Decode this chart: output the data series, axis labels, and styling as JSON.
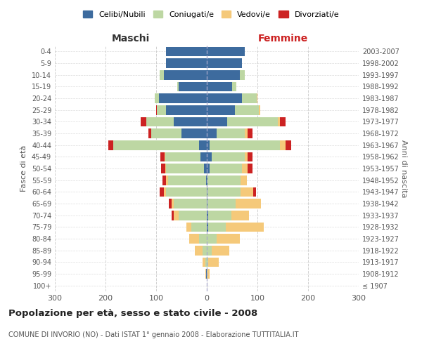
{
  "age_groups": [
    "100+",
    "95-99",
    "90-94",
    "85-89",
    "80-84",
    "75-79",
    "70-74",
    "65-69",
    "60-64",
    "55-59",
    "50-54",
    "45-49",
    "40-44",
    "35-39",
    "30-34",
    "25-29",
    "20-24",
    "15-19",
    "10-14",
    "5-9",
    "0-4"
  ],
  "birth_years": [
    "≤ 1907",
    "1908-1912",
    "1913-1917",
    "1918-1922",
    "1923-1927",
    "1928-1932",
    "1933-1937",
    "1938-1942",
    "1943-1947",
    "1948-1952",
    "1953-1957",
    "1958-1962",
    "1963-1967",
    "1968-1972",
    "1973-1977",
    "1978-1982",
    "1983-1987",
    "1988-1992",
    "1993-1997",
    "1998-2002",
    "2003-2007"
  ],
  "maschi": {
    "celibi": [
      0,
      1,
      0,
      0,
      0,
      0,
      0,
      0,
      0,
      2,
      5,
      12,
      15,
      50,
      65,
      80,
      95,
      55,
      85,
      80,
      80
    ],
    "coniugati": [
      0,
      0,
      3,
      8,
      15,
      30,
      55,
      65,
      80,
      75,
      75,
      70,
      170,
      60,
      55,
      18,
      8,
      3,
      8,
      0,
      0
    ],
    "vedovi": [
      0,
      2,
      5,
      15,
      20,
      10,
      10,
      5,
      5,
      3,
      2,
      2,
      0,
      0,
      0,
      0,
      0,
      0,
      0,
      0,
      0
    ],
    "divorziati": [
      0,
      0,
      0,
      0,
      0,
      0,
      5,
      5,
      8,
      8,
      8,
      8,
      10,
      5,
      10,
      2,
      0,
      0,
      0,
      0,
      0
    ]
  },
  "femmine": {
    "nubili": [
      0,
      0,
      0,
      0,
      0,
      3,
      3,
      2,
      2,
      2,
      5,
      10,
      5,
      20,
      40,
      55,
      70,
      50,
      65,
      70,
      75
    ],
    "coniugate": [
      0,
      1,
      3,
      10,
      20,
      35,
      45,
      55,
      65,
      65,
      65,
      65,
      140,
      55,
      100,
      48,
      28,
      8,
      10,
      0,
      0
    ],
    "vedove": [
      0,
      5,
      20,
      35,
      45,
      75,
      35,
      50,
      25,
      12,
      10,
      5,
      10,
      5,
      5,
      2,
      2,
      0,
      0,
      0,
      0
    ],
    "divorziate": [
      0,
      0,
      0,
      0,
      0,
      0,
      0,
      0,
      5,
      0,
      10,
      10,
      12,
      10,
      10,
      0,
      0,
      0,
      0,
      0,
      0
    ]
  },
  "colors": {
    "celibi_nubili": "#3D6B9E",
    "coniugati_e": "#BDD7A3",
    "vedovi_e": "#F5C97A",
    "divorziati_e": "#CC2222"
  },
  "title": "Popolazione per età, sesso e stato civile - 2008",
  "subtitle": "COMUNE DI INVORIO (NO) - Dati ISTAT 1° gennaio 2008 - Elaborazione TUTTITALIA.IT",
  "ylabel_left": "Fasce di età",
  "ylabel_right": "Anni di nascita",
  "xlabel_left": "Maschi",
  "xlabel_right": "Femmine",
  "xlim": 300,
  "background_color": "#FFFFFF",
  "grid_color": "#CCCCCC"
}
